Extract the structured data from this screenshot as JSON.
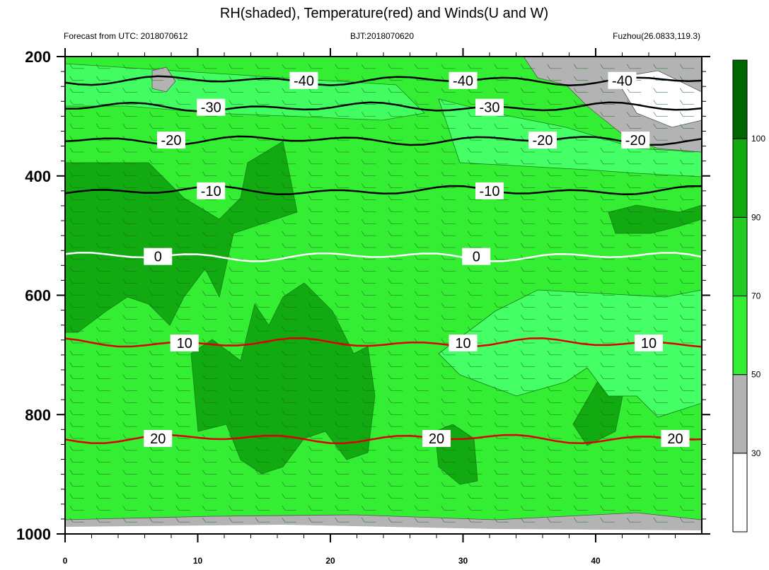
{
  "chart_data": {
    "type": "heatmap",
    "title": "RH(shaded), Temperature(red) and Winds(U and W)",
    "subtitle_left": "Forecast from UTC: 2018070612",
    "subtitle_center": "BJT:2018070620",
    "subtitle_right": "Fuzhou(26.0833,119.3)",
    "x_range": [
      0,
      48
    ],
    "x_ticks": [
      0,
      10,
      20,
      30,
      40
    ],
    "y_range": [
      200,
      1000
    ],
    "y_ticks": [
      200,
      400,
      600,
      800,
      1000
    ],
    "y_reversed": true,
    "colorbar": {
      "levels": [
        30,
        50,
        70,
        90,
        100
      ],
      "colors": [
        "#ffffff",
        "#b3b3b3",
        "#33ee33",
        "#22cc22",
        "#11aa11",
        "#006600"
      ]
    },
    "temperature_contours": [
      {
        "value": -40,
        "pressure": 240,
        "color": "#000000",
        "labels": [
          "-40",
          "-40",
          "-40"
        ]
      },
      {
        "value": -30,
        "pressure": 285,
        "color": "#000000",
        "labels": [
          "-30",
          "-30"
        ]
      },
      {
        "value": -20,
        "pressure": 340,
        "color": "#000000",
        "labels": [
          "-20",
          "-20",
          "-20"
        ]
      },
      {
        "value": -10,
        "pressure": 425,
        "color": "#000000",
        "labels": [
          "-10",
          "-10"
        ]
      },
      {
        "value": 0,
        "pressure": 535,
        "color": "#ffffff",
        "labels": [
          "0",
          "0"
        ]
      },
      {
        "value": 10,
        "pressure": 680,
        "color": "#dd0000",
        "labels": [
          "10",
          "10",
          "10"
        ]
      },
      {
        "value": 20,
        "pressure": 840,
        "color": "#dd0000",
        "labels": [
          "20",
          "20",
          "20"
        ]
      }
    ]
  }
}
